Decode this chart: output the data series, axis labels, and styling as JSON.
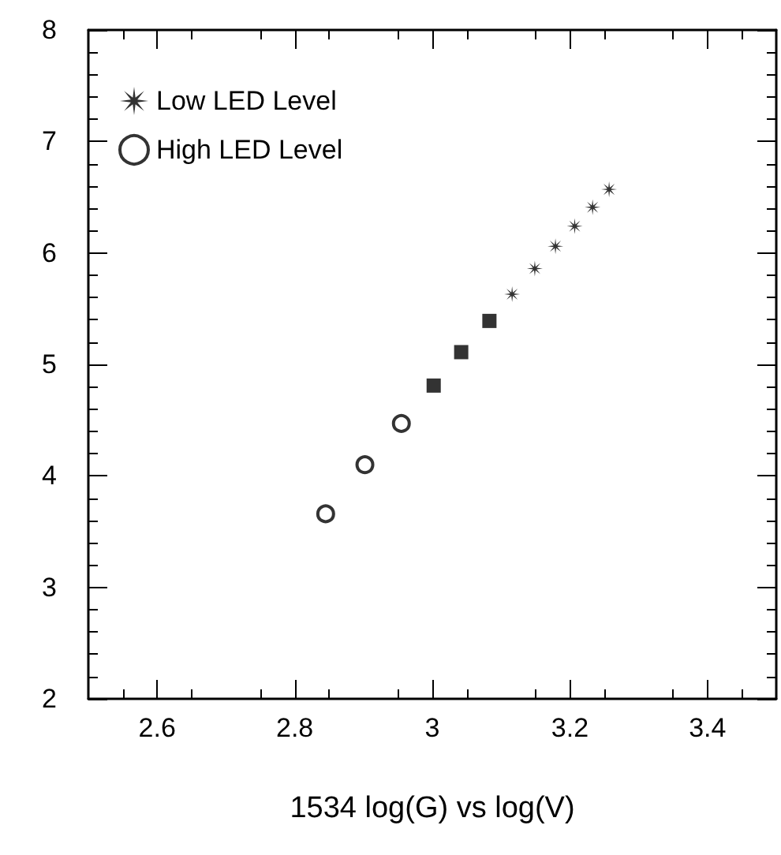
{
  "chart_data": {
    "type": "scatter",
    "xlabel": "1534 log(G) vs log(V)",
    "xlim": [
      2.5,
      3.5
    ],
    "xticks": [
      2.6,
      2.8,
      3,
      3.2,
      3.4
    ],
    "ylim": [
      2,
      8
    ],
    "yticks": [
      2,
      3,
      4,
      5,
      6,
      7,
      8
    ],
    "legend": "top left",
    "grid": false,
    "series": [
      {
        "name": "Low LED Level",
        "color": "#000000",
        "marker": "star",
        "x": [
          3.116,
          3.149,
          3.179,
          3.207,
          3.233,
          3.257
        ],
        "values": [
          5.63,
          5.86,
          6.06,
          6.24,
          6.41,
          6.57
        ]
      },
      {
        "name": "High LED Level",
        "color": "#000000",
        "marker": "circle",
        "x": [
          2.845,
          2.902,
          2.955
        ],
        "values": [
          3.66,
          4.1,
          4.47
        ]
      },
      {
        "color": "#000000",
        "marker": "square",
        "x": [
          3.002,
          3.042,
          3.083
        ],
        "values": [
          4.81,
          5.11,
          5.39
        ]
      }
    ]
  }
}
